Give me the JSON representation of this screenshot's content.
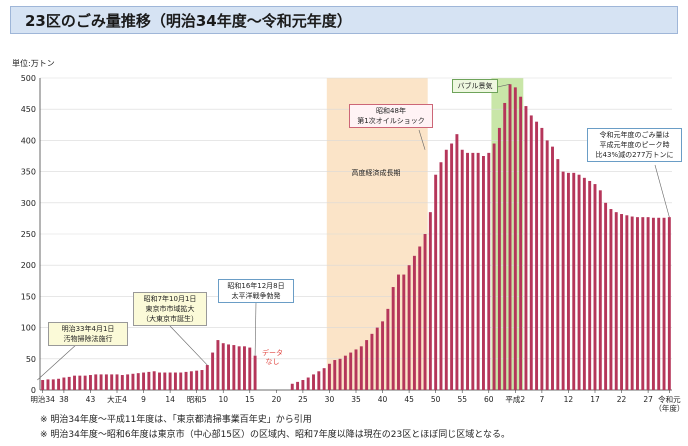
{
  "title": "23区のごみ量推移（明治34年度～令和元年度）",
  "unit_label": "単位:万トン",
  "notes": [
    "※ 明治34年度～平成11年度は、「東京都清掃事業百年史」から引用",
    "※ 明治34年度～昭和6年度は東京市（中心部15区）の区域内、昭和7年度以降は現在の23区とほぼ同じ区域となる。"
  ],
  "annotations": {
    "meiji33": "明治33年4月1日\n汚物掃除法施行",
    "showa7": "昭和7年10月1日\n東京市市域拡大\n（大東京市誕生）",
    "showa16": "昭和16年12月8日\n太平洋戦争勃発",
    "data_nashi": "データ\nなし",
    "high_growth": "高度経済成長期",
    "oil_shock": "昭和48年\n第1次オイルショック",
    "bubble": "バブル景気",
    "reiwa": "令和元年度のごみ量は\n平成元年度のピーク時\n比43%減の277万トンに"
  },
  "colors": {
    "bar": "#b5365a",
    "high_growth_band": "#fbe4c8",
    "bubble_band": "#c9e6a8",
    "title_bg": "#d6e3f3",
    "grid": "#d9d9d9"
  },
  "chart_data": {
    "type": "bar",
    "title": "23区のごみ量推移（明治34年度～令和元年度）",
    "ylabel": "単位:万トン",
    "ylim": [
      0,
      500
    ],
    "yticks": [
      0,
      50,
      100,
      150,
      200,
      250,
      300,
      350,
      400,
      450,
      500
    ],
    "grid": true,
    "x_tick_labels": [
      {
        "label": "明治34",
        "year": 1901
      },
      {
        "label": "38",
        "year": 1905
      },
      {
        "label": "43",
        "year": 1910
      },
      {
        "label": "大正4",
        "year": 1915
      },
      {
        "label": "9",
        "year": 1920
      },
      {
        "label": "14",
        "year": 1925
      },
      {
        "label": "昭和5",
        "year": 1930
      },
      {
        "label": "10",
        "year": 1935
      },
      {
        "label": "15",
        "year": 1940
      },
      {
        "label": "20",
        "year": 1945
      },
      {
        "label": "25",
        "year": 1950
      },
      {
        "label": "30",
        "year": 1955
      },
      {
        "label": "35",
        "year": 1960
      },
      {
        "label": "40",
        "year": 1965
      },
      {
        "label": "45",
        "year": 1970
      },
      {
        "label": "50",
        "year": 1975
      },
      {
        "label": "55",
        "year": 1980
      },
      {
        "label": "60",
        "year": 1985
      },
      {
        "label": "平成2",
        "year": 1990
      },
      {
        "label": "7",
        "year": 1995
      },
      {
        "label": "12",
        "year": 2000
      },
      {
        "label": "17",
        "year": 2005
      },
      {
        "label": "22",
        "year": 2010
      },
      {
        "label": "27",
        "year": 2015
      },
      {
        "label": "令和元\n（年度）",
        "year": 2019
      }
    ],
    "bands": [
      {
        "name": "高度経済成長期",
        "start": 1955,
        "end": 1973
      },
      {
        "name": "バブル景気",
        "start": 1986,
        "end": 1991
      }
    ],
    "x": [
      1901,
      1902,
      1903,
      1904,
      1905,
      1906,
      1907,
      1908,
      1909,
      1910,
      1911,
      1912,
      1913,
      1914,
      1915,
      1916,
      1917,
      1918,
      1919,
      1920,
      1921,
      1922,
      1923,
      1924,
      1925,
      1926,
      1927,
      1928,
      1929,
      1930,
      1931,
      1932,
      1933,
      1934,
      1935,
      1936,
      1937,
      1938,
      1939,
      1940,
      1941,
      1942,
      1943,
      1944,
      1945,
      1946,
      1947,
      1948,
      1949,
      1950,
      1951,
      1952,
      1953,
      1954,
      1955,
      1956,
      1957,
      1958,
      1959,
      1960,
      1961,
      1962,
      1963,
      1964,
      1965,
      1966,
      1967,
      1968,
      1969,
      1970,
      1971,
      1972,
      1973,
      1974,
      1975,
      1976,
      1977,
      1978,
      1979,
      1980,
      1981,
      1982,
      1983,
      1984,
      1985,
      1986,
      1987,
      1988,
      1989,
      1990,
      1991,
      1992,
      1993,
      1994,
      1995,
      1996,
      1997,
      1998,
      1999,
      2000,
      2001,
      2002,
      2003,
      2004,
      2005,
      2006,
      2007,
      2008,
      2009,
      2010,
      2011,
      2012,
      2013,
      2014,
      2015,
      2016,
      2017,
      2018,
      2019
    ],
    "values": [
      16,
      17,
      17,
      18,
      20,
      21,
      23,
      23,
      23,
      24,
      25,
      25,
      25,
      25,
      25,
      24,
      25,
      26,
      27,
      28,
      29,
      30,
      28,
      28,
      28,
      28,
      28,
      29,
      30,
      31,
      32,
      40,
      60,
      80,
      75,
      73,
      72,
      70,
      70,
      68,
      55,
      null,
      null,
      null,
      null,
      null,
      null,
      10,
      13,
      16,
      20,
      25,
      30,
      35,
      42,
      48,
      50,
      55,
      60,
      65,
      70,
      80,
      90,
      100,
      110,
      130,
      165,
      185,
      185,
      200,
      215,
      230,
      250,
      285,
      345,
      365,
      385,
      395,
      410,
      385,
      380,
      380,
      380,
      375,
      380,
      395,
      420,
      460,
      490,
      485,
      470,
      455,
      440,
      430,
      420,
      400,
      390,
      370,
      350,
      348,
      348,
      345,
      340,
      335,
      330,
      320,
      300,
      290,
      285,
      282,
      280,
      278,
      277,
      277,
      277,
      276,
      276,
      276,
      277
    ]
  }
}
